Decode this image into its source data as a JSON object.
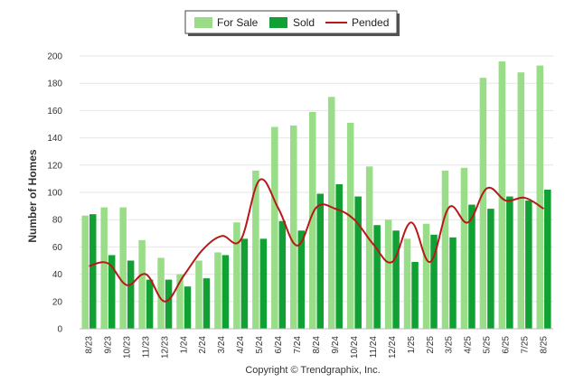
{
  "chart_data": {
    "type": "bar",
    "ylabel": "Number of Homes",
    "ylim": [
      0,
      200
    ],
    "yticks": [
      0,
      20,
      40,
      60,
      80,
      100,
      120,
      140,
      160,
      180,
      200
    ],
    "categories": [
      "8/23",
      "9/23",
      "10/23",
      "11/23",
      "12/23",
      "1/24",
      "2/24",
      "3/24",
      "4/24",
      "5/24",
      "6/24",
      "7/24",
      "8/24",
      "9/24",
      "10/24",
      "11/24",
      "12/24",
      "1/25",
      "2/25",
      "3/25",
      "4/25",
      "5/25",
      "6/25",
      "7/25",
      "8/25"
    ],
    "series": [
      {
        "name": "For Sale",
        "kind": "bar",
        "color": "#99dd88",
        "values": [
          83,
          89,
          89,
          65,
          52,
          40,
          50,
          56,
          78,
          116,
          148,
          149,
          159,
          170,
          151,
          119,
          80,
          66,
          77,
          116,
          118,
          184,
          196,
          188,
          193
        ]
      },
      {
        "name": "Sold",
        "kind": "bar",
        "color": "#11a033",
        "values": [
          84,
          54,
          50,
          36,
          36,
          31,
          37,
          54,
          66,
          66,
          79,
          72,
          99,
          106,
          97,
          76,
          72,
          49,
          69,
          67,
          91,
          88,
          97,
          94,
          102
        ]
      },
      {
        "name": "Pended",
        "kind": "line",
        "color": "#b81818",
        "values": [
          46,
          48,
          32,
          40,
          20,
          39,
          58,
          68,
          65,
          109,
          88,
          61,
          89,
          88,
          80,
          62,
          49,
          78,
          49,
          89,
          78,
          103,
          94,
          96,
          88
        ]
      }
    ],
    "legend_position": "top-center",
    "grid": true,
    "credit": "Copyright © Trendgraphix, Inc."
  }
}
